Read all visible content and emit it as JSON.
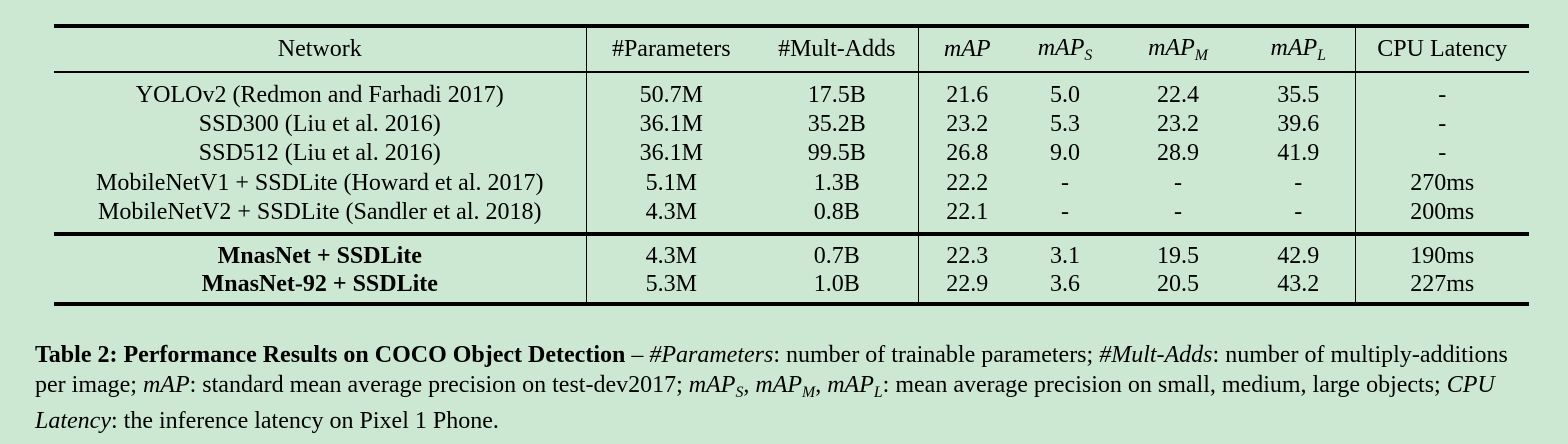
{
  "table": {
    "headers": {
      "network": "Network",
      "parameters": "#Parameters",
      "mult_adds": "#Mult-Adds",
      "map": "mAP",
      "map_s_base": "mAP",
      "map_s_sub": "S",
      "map_m_base": "mAP",
      "map_m_sub": "M",
      "map_l_base": "mAP",
      "map_l_sub": "L",
      "cpu_latency": "CPU Latency"
    },
    "baseline_rows": [
      {
        "network": "YOLOv2 (Redmon and Farhadi 2017)",
        "params": "50.7M",
        "mult_adds": "17.5B",
        "map": "21.6",
        "map_s": "5.0",
        "map_m": "22.4",
        "map_l": "35.5",
        "cpu": "-"
      },
      {
        "network": "SSD300 (Liu et al. 2016)",
        "params": "36.1M",
        "mult_adds": "35.2B",
        "map": "23.2",
        "map_s": "5.3",
        "map_m": "23.2",
        "map_l": "39.6",
        "cpu": "-"
      },
      {
        "network": "SSD512 (Liu et al. 2016)",
        "params": "36.1M",
        "mult_adds": "99.5B",
        "map": "26.8",
        "map_s": "9.0",
        "map_m": "28.9",
        "map_l": "41.9",
        "cpu": "-"
      },
      {
        "network": "MobileNetV1 + SSDLite (Howard et al. 2017)",
        "params": "5.1M",
        "mult_adds": "1.3B",
        "map": "22.2",
        "map_s": "-",
        "map_m": "-",
        "map_l": "-",
        "cpu": "270ms"
      },
      {
        "network": "MobileNetV2 + SSDLite (Sandler et al. 2018)",
        "params": "4.3M",
        "mult_adds": "0.8B",
        "map": "22.1",
        "map_s": "-",
        "map_m": "-",
        "map_l": "-",
        "cpu": "200ms"
      }
    ],
    "our_rows": [
      {
        "network": "MnasNet + SSDLite",
        "params": "4.3M",
        "mult_adds": "0.7B",
        "map": "22.3",
        "map_s": "3.1",
        "map_m": "19.5",
        "map_l": "42.9",
        "cpu": "190ms"
      },
      {
        "network": "MnasNet-92 + SSDLite",
        "params": "5.3M",
        "mult_adds": "1.0B",
        "map": "22.9",
        "map_s": "3.6",
        "map_m": "20.5",
        "map_l": "43.2",
        "cpu": "227ms"
      }
    ]
  },
  "caption": {
    "label": "Table 2:",
    "title": "Performance Results on COCO Object Detection",
    "dash": " – ",
    "t1": "#Parameters",
    "d1": ": number of trainable parameters; ",
    "t2": "#Mult-Adds",
    "d2": ": number of multiply-additions per image; ",
    "t3": "mAP",
    "d3": ": standard mean average precision on test-dev2017; ",
    "t4a": "mAP",
    "t4a_sub": "S",
    "sep1": ", ",
    "t4b": "mAP",
    "t4b_sub": "M",
    "sep2": ", ",
    "t4c": "mAP",
    "t4c_sub": "L",
    "d4": ": mean average precision on small, medium, large objects; ",
    "t5": "CPU Latency",
    "d5": ": the inference latency on Pixel 1 Phone."
  }
}
